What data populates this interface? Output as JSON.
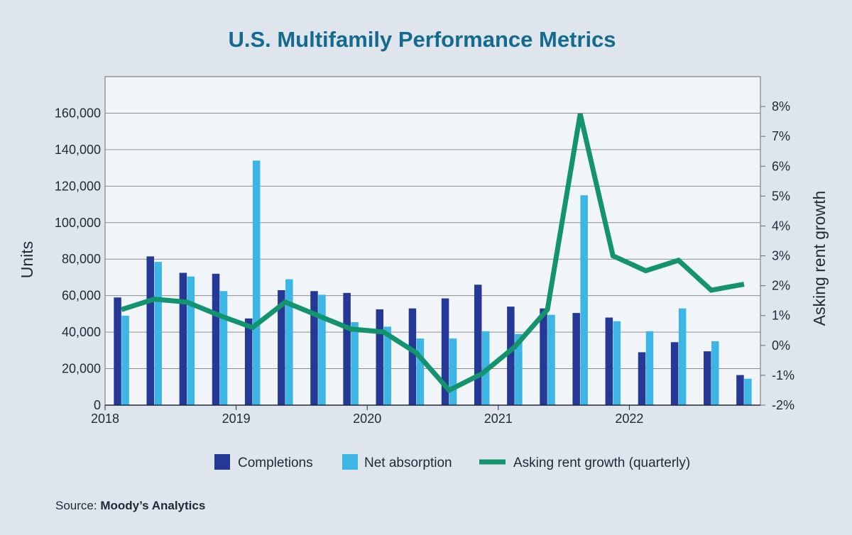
{
  "chart_data": {
    "type": "bar",
    "title": "U.S. Multifamily Performance Metrics",
    "y_left_label": "Units",
    "y_right_label": "Asking rent growth",
    "y_left_ticks": [
      "0",
      "20,000",
      "40,000",
      "60,000",
      "80,000",
      "100,000",
      "120,000",
      "140,000",
      "160,000"
    ],
    "y_right_ticks": [
      "-2%",
      "-1%",
      "0%",
      "1%",
      "2%",
      "3%",
      "4%",
      "5%",
      "6%",
      "7%",
      "8%"
    ],
    "ylim_left": [
      0,
      180000
    ],
    "ylim_right": [
      -2,
      9
    ],
    "x_labels": [
      "2018",
      "2019",
      "2020",
      "2021",
      "2022"
    ],
    "quarters": [
      "2018 Q1",
      "2018 Q2",
      "2018 Q3",
      "2018 Q4",
      "2019 Q1",
      "2019 Q2",
      "2019 Q3",
      "2019 Q4",
      "2020 Q1",
      "2020 Q2",
      "2020 Q3",
      "2020 Q4",
      "2021 Q1",
      "2021 Q2",
      "2021 Q3",
      "2021 Q4",
      "2022 Q1",
      "2022 Q2",
      "2022 Q3",
      "2022 Q4"
    ],
    "series": [
      {
        "name": "Completions",
        "kind": "bar",
        "axis": "left",
        "color": "#253896",
        "values": [
          59000,
          81500,
          72500,
          72000,
          47500,
          63000,
          62500,
          61500,
          52500,
          53000,
          58500,
          66000,
          54000,
          53000,
          50500,
          48000,
          29000,
          34500,
          29500,
          16500
        ]
      },
      {
        "name": "Net absorption",
        "kind": "bar",
        "axis": "left",
        "color": "#3db6e6",
        "values": [
          49000,
          78500,
          70500,
          62500,
          134000,
          69000,
          60500,
          45500,
          43000,
          36500,
          36500,
          40500,
          39000,
          49500,
          115000,
          46000,
          40500,
          53000,
          35000,
          14500
        ]
      },
      {
        "name": "Asking rent growth (quarterly)",
        "kind": "line",
        "axis": "right",
        "color": "#14946e",
        "values": [
          1.2,
          1.55,
          1.45,
          1.0,
          0.6,
          1.45,
          1.0,
          0.55,
          0.45,
          -0.25,
          -1.5,
          -0.95,
          -0.05,
          1.2,
          7.75,
          3.0,
          2.5,
          2.85,
          1.85,
          2.05
        ]
      }
    ],
    "grid": true,
    "legend_position": "bottom"
  },
  "source": {
    "label": "Source: ",
    "name": "Moody’s Analytics"
  },
  "colors": {
    "background": "#dfe5ec",
    "plot_background": "#f2f5f8",
    "gridline": "#8c8c8c",
    "title": "#156b8d"
  }
}
